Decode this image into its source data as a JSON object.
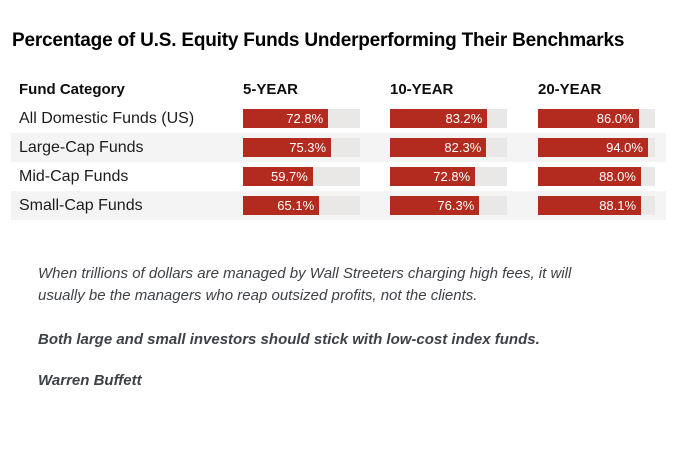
{
  "title": "Percentage of U.S. Equity Funds Underperforming Their Benchmarks",
  "table": {
    "headers": [
      "Fund Category",
      "5-YEAR",
      "10-YEAR",
      "20-YEAR"
    ],
    "rows": [
      {
        "label": "All Domestic Funds (US)",
        "values": [
          72.8,
          83.2,
          86.0
        ],
        "value_labels": [
          "72.8%",
          "83.2%",
          "86.0%"
        ]
      },
      {
        "label": "Large-Cap Funds",
        "values": [
          75.3,
          82.3,
          94.0
        ],
        "value_labels": [
          "75.3%",
          "82.3%",
          "94.0%"
        ]
      },
      {
        "label": "Mid-Cap Funds",
        "values": [
          59.7,
          72.8,
          88.0
        ],
        "value_labels": [
          "59.7%",
          "72.8%",
          "88.0%"
        ]
      },
      {
        "label": "Small-Cap Funds",
        "values": [
          65.1,
          76.3,
          88.1
        ],
        "value_labels": [
          "65.1%",
          "76.3%",
          "88.1%"
        ]
      }
    ]
  },
  "quote": {
    "line1": "When trillions of dollars are managed by Wall Streeters charging high fees, it will",
    "line2": "usually be the managers who reap outsized profits, not the clients.",
    "emphasis": "Both large and small investors should stick with low-cost index funds.",
    "attribution": "Warren Buffett"
  },
  "colors": {
    "bar_fill": "#b32b1e",
    "bar_track": "#e9e8e6",
    "row_alt_background": "#f4f4f4",
    "quote_text": "#3e4247",
    "title_text": "#000000"
  },
  "chart_data": {
    "type": "bar",
    "orientation": "horizontal",
    "title": "Percentage of U.S. Equity Funds Underperforming Their Benchmarks",
    "categories": [
      "All Domestic Funds (US)",
      "Large-Cap Funds",
      "Mid-Cap Funds",
      "Small-Cap Funds"
    ],
    "series": [
      {
        "name": "5-YEAR",
        "values": [
          72.8,
          75.3,
          59.7,
          65.1
        ]
      },
      {
        "name": "10-YEAR",
        "values": [
          83.2,
          82.3,
          72.8,
          76.3
        ]
      },
      {
        "name": "20-YEAR",
        "values": [
          86.0,
          94.0,
          88.0,
          88.1
        ]
      }
    ],
    "value_unit": "%",
    "xlim": [
      0,
      100
    ],
    "legend_position": "column-headers",
    "grid": false,
    "annotations": [
      "When trillions of dollars are managed by Wall Streeters charging high fees, it will usually be the managers who reap outsized profits, not the clients.",
      "Both large and small investors should stick with low-cost index funds.",
      "Warren Buffett"
    ]
  }
}
